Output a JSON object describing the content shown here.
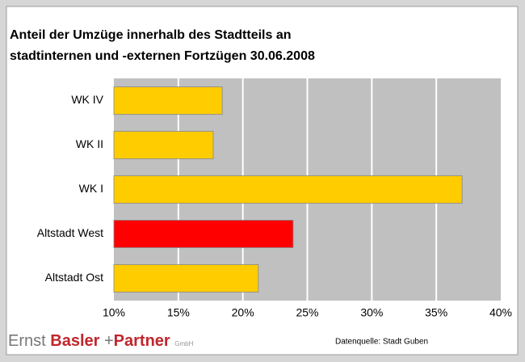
{
  "chart_data": {
    "type": "barh",
    "title": [
      "Anteil der Umzüge innerhalb des Stadtteils an",
      "stadtinternen und -externen Fortzügen 30.06.2008"
    ],
    "categories": [
      "WK IV",
      "WK II",
      "WK I",
      "Altstadt West",
      "Altstadt Ost"
    ],
    "values": [
      18.4,
      17.7,
      37.0,
      23.9,
      21.2
    ],
    "colors": [
      "#ffcc00",
      "#ffcc00",
      "#ffcc00",
      "#ff0000",
      "#ffcc00"
    ],
    "xlim": [
      10,
      40
    ],
    "xticks": [
      {
        "value": 10,
        "label": "10%"
      },
      {
        "value": 15,
        "label": "15%"
      },
      {
        "value": 20,
        "label": "20%"
      },
      {
        "value": 25,
        "label": "25%"
      },
      {
        "value": 30,
        "label": "30%"
      },
      {
        "value": 35,
        "label": "35%"
      },
      {
        "value": 40,
        "label": "40%"
      }
    ],
    "grid": true,
    "source": "Datenquelle: Stadt Guben"
  },
  "logo": {
    "first": "Ernst",
    "second": "Basler",
    "plus": "+",
    "third": "Partner",
    "suffix": "GmbH"
  }
}
